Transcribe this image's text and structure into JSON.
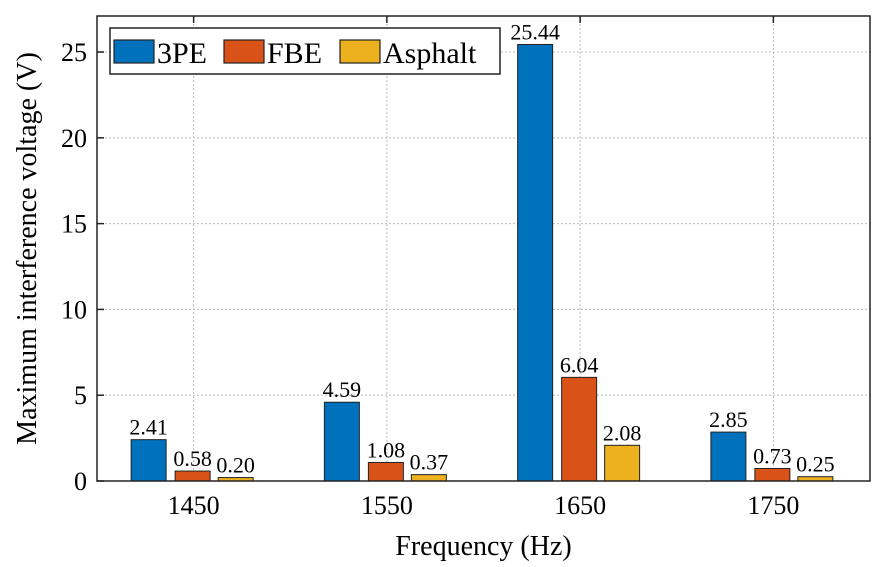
{
  "chart_data": {
    "type": "bar",
    "title": "",
    "xlabel": "Frequency (Hz)",
    "ylabel": "Maximum interference voltage (V)",
    "categories": [
      "1450",
      "1550",
      "1650",
      "1750"
    ],
    "series": [
      {
        "name": "3PE",
        "color": "#0072BD",
        "values": [
          2.41,
          4.59,
          25.44,
          2.85
        ],
        "labels": [
          "2.41",
          "4.59",
          "25.44",
          "2.85"
        ]
      },
      {
        "name": "FBE",
        "color": "#D95319",
        "values": [
          0.58,
          1.08,
          6.04,
          0.73
        ],
        "labels": [
          "0.58",
          "1.08",
          "6.04",
          "0.73"
        ]
      },
      {
        "name": "Asphalt",
        "color": "#EDB120",
        "values": [
          0.2,
          0.37,
          2.08,
          0.25
        ],
        "labels": [
          "0.20",
          "0.37",
          "2.08",
          "0.25"
        ]
      }
    ],
    "ylim": [
      0,
      27.1
    ],
    "yticks": [
      "0",
      "5",
      "10",
      "15",
      "20",
      "25"
    ],
    "grid": true,
    "legend": "top-left, horizontal"
  }
}
